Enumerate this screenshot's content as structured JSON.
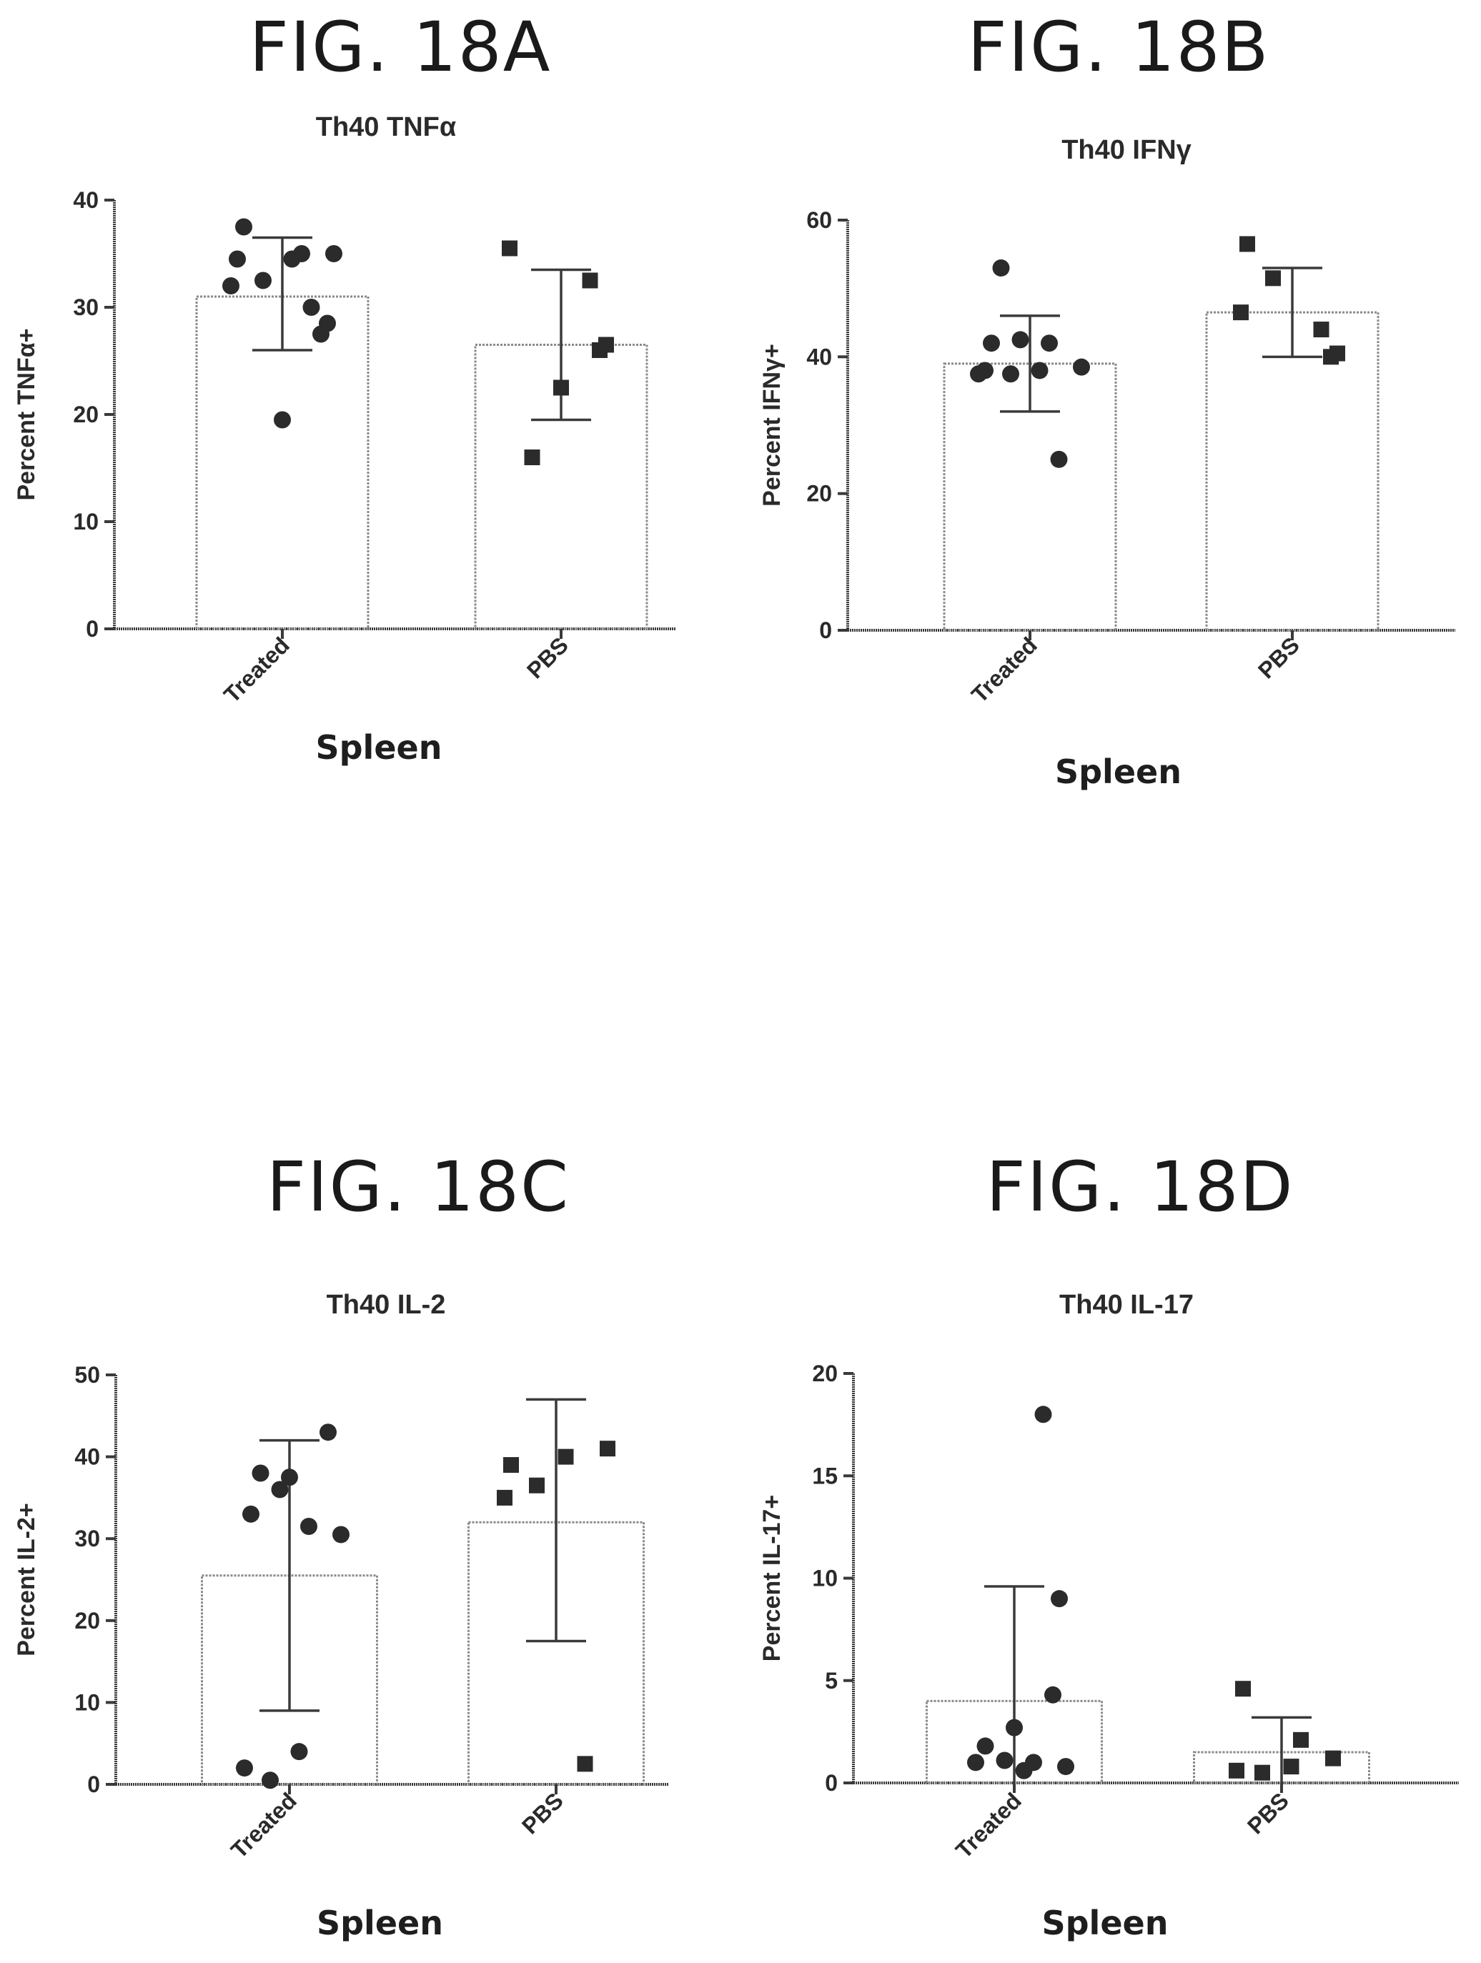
{
  "figures": [
    {
      "label": "FIG. 18A"
    },
    {
      "label": "FIG. 18B"
    },
    {
      "label": "FIG. 18C"
    },
    {
      "label": "FIG. 18D"
    }
  ],
  "chart_data": [
    {
      "type": "bar",
      "title": "Th40 TNFα",
      "xlabel": "Spleen",
      "ylabel": "Percent TNFα+",
      "ylim": [
        0,
        40
      ],
      "yticks": [
        0,
        10,
        20,
        30,
        40
      ],
      "categories": [
        "Treated",
        "PBS"
      ],
      "values": [
        31,
        26.5
      ],
      "error": [
        [
          26,
          36.5
        ],
        [
          19.5,
          33.5
        ]
      ],
      "points": [
        [
          37.5,
          35,
          35,
          34.5,
          34.5,
          32.5,
          32,
          30,
          28.5,
          27.5,
          19.5
        ],
        [
          35.5,
          32.5,
          26.5,
          26,
          22.5,
          16
        ]
      ],
      "markers": [
        "circle",
        "square"
      ]
    },
    {
      "type": "bar",
      "title": "Th40 IFNγ",
      "xlabel": "Spleen",
      "ylabel": "Percent IFNγ+",
      "ylim": [
        0,
        60
      ],
      "yticks": [
        0,
        20,
        40,
        60
      ],
      "categories": [
        "Treated",
        "PBS"
      ],
      "values": [
        39,
        46.5
      ],
      "error": [
        [
          32,
          46
        ],
        [
          40,
          53
        ]
      ],
      "points": [
        [
          53,
          42.5,
          42,
          42,
          38.5,
          38,
          38,
          37.5,
          37.5,
          25
        ],
        [
          56.5,
          51.5,
          46.5,
          44,
          40.5,
          40
        ]
      ],
      "markers": [
        "circle",
        "square"
      ]
    },
    {
      "type": "bar",
      "title": "Th40 IL-2",
      "xlabel": "Spleen",
      "ylabel": "Percent IL-2+",
      "ylim": [
        0,
        50
      ],
      "yticks": [
        0,
        10,
        20,
        30,
        40,
        50
      ],
      "categories": [
        "Treated",
        "PBS"
      ],
      "values": [
        25.5,
        32
      ],
      "error": [
        [
          9,
          42
        ],
        [
          17.5,
          47
        ]
      ],
      "points": [
        [
          43,
          37.5,
          38,
          36,
          33,
          31.5,
          30.5,
          4,
          2,
          0.5
        ],
        [
          41,
          40,
          39,
          36.5,
          35,
          2.5
        ]
      ],
      "markers": [
        "circle",
        "square"
      ]
    },
    {
      "type": "bar",
      "title": "Th40 IL-17",
      "xlabel": "Spleen",
      "ylabel": "Percent IL-17+",
      "ylim": [
        0,
        20
      ],
      "yticks": [
        0,
        5,
        10,
        15,
        20
      ],
      "categories": [
        "Treated",
        "PBS"
      ],
      "values": [
        4,
        1.5
      ],
      "error": [
        [
          0,
          9.6
        ],
        [
          0,
          3.2
        ]
      ],
      "points": [
        [
          18,
          9,
          4.3,
          2.7,
          1.8,
          1.1,
          1,
          1,
          0.8,
          0.6
        ],
        [
          4.6,
          2.1,
          1.2,
          0.8,
          0.6,
          0.5
        ]
      ],
      "markers": [
        "circle",
        "square"
      ]
    }
  ]
}
